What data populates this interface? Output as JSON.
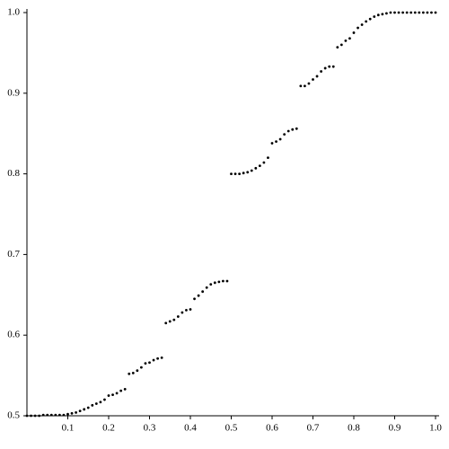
{
  "chart_data": {
    "type": "scatter",
    "color": "#000000",
    "x": [
      0,
      0.01,
      0.02,
      0.03,
      0.04,
      0.05,
      0.06,
      0.07,
      0.08,
      0.09,
      0.1,
      0.11,
      0.12,
      0.13,
      0.14,
      0.15,
      0.16,
      0.17,
      0.18,
      0.19,
      0.2,
      0.21,
      0.22,
      0.23,
      0.24,
      0.25,
      0.26,
      0.27,
      0.28,
      0.29,
      0.3,
      0.31,
      0.32,
      0.33,
      0.34,
      0.35,
      0.36,
      0.37,
      0.38,
      0.39,
      0.4,
      0.41,
      0.42,
      0.43,
      0.44,
      0.45,
      0.46,
      0.47,
      0.48,
      0.49,
      0.5,
      0.51,
      0.52,
      0.53,
      0.54,
      0.55,
      0.56,
      0.57,
      0.58,
      0.59,
      0.6,
      0.61,
      0.62,
      0.63,
      0.64,
      0.65,
      0.66,
      0.67,
      0.68,
      0.69,
      0.7,
      0.71,
      0.72,
      0.73,
      0.74,
      0.75,
      0.76,
      0.77,
      0.78,
      0.79,
      0.8,
      0.81,
      0.82,
      0.83,
      0.84,
      0.85,
      0.86,
      0.87,
      0.88,
      0.89,
      0.9,
      0.91,
      0.92,
      0.93,
      0.94,
      0.95,
      0.96,
      0.97,
      0.98,
      0.99,
      1
    ],
    "values": [
      0.5,
      0.5,
      0.5,
      0.5,
      0.501,
      0.501,
      0.501,
      0.501,
      0.501,
      0.501,
      0.502,
      0.503,
      0.504,
      0.506,
      0.508,
      0.51,
      0.513,
      0.515,
      0.517,
      0.52,
      0.525,
      0.526,
      0.528,
      0.531,
      0.533,
      0.552,
      0.553,
      0.556,
      0.56,
      0.565,
      0.566,
      0.569,
      0.571,
      0.572,
      0.615,
      0.617,
      0.619,
      0.623,
      0.628,
      0.631,
      0.632,
      0.645,
      0.649,
      0.654,
      0.659,
      0.663,
      0.665,
      0.666,
      0.667,
      0.667,
      0.8,
      0.8,
      0.8,
      0.801,
      0.802,
      0.804,
      0.807,
      0.81,
      0.814,
      0.82,
      0.838,
      0.84,
      0.843,
      0.849,
      0.853,
      0.855,
      0.856,
      0.909,
      0.909,
      0.912,
      0.917,
      0.921,
      0.927,
      0.931,
      0.933,
      0.933,
      0.957,
      0.96,
      0.965,
      0.968,
      0.975,
      0.981,
      0.985,
      0.989,
      0.992,
      0.995,
      0.997,
      0.998,
      0.999,
      1,
      1,
      1,
      1,
      1,
      1,
      1,
      1,
      1,
      1,
      1,
      1
    ],
    "xlim": [
      0,
      1
    ],
    "xticks": [
      0.1,
      0.2,
      0.3,
      0.4,
      0.5,
      0.6,
      0.7,
      0.8,
      0.9,
      {
        "value": 1,
        "label": "1.0"
      }
    ],
    "ylim": [
      0.5,
      1
    ],
    "yticks": [
      0.5,
      0.6,
      0.7,
      0.8,
      0.9,
      {
        "value": 1,
        "label": "1.0"
      }
    ]
  }
}
